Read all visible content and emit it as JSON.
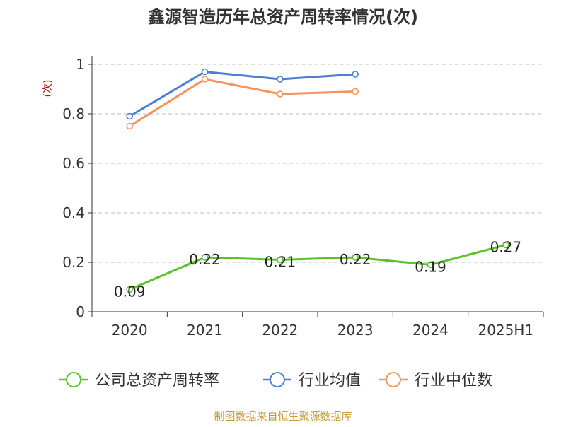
{
  "chart_data": {
    "type": "line",
    "title": "鑫源智造历年总资产周转率情况(次)",
    "ylabel": "(次)",
    "xlabel": "",
    "categories": [
      "2020",
      "2021",
      "2022",
      "2023",
      "2024",
      "2025H1"
    ],
    "ylim": [
      0,
      1
    ],
    "yticks": [
      {
        "value": 0,
        "label": "0"
      },
      {
        "value": 0.2,
        "label": "0.2"
      },
      {
        "value": 0.4,
        "label": "0.4"
      },
      {
        "value": 0.6,
        "label": "0.6"
      },
      {
        "value": 0.8,
        "label": "0.8"
      },
      {
        "value": 1,
        "label": "1"
      }
    ],
    "grid": true,
    "legend_position": "bottom",
    "series": [
      {
        "name": "公司总资产周转率",
        "color": "#5bc229",
        "values": [
          0.09,
          0.22,
          0.21,
          0.22,
          0.19,
          0.27
        ],
        "data_labels": [
          "0.09",
          "0.22",
          "0.21",
          "0.22",
          "0.19",
          "0.27"
        ]
      },
      {
        "name": "行业均值",
        "color": "#4a7fd4",
        "values": [
          0.79,
          0.97,
          0.94,
          0.96,
          null,
          null
        ]
      },
      {
        "name": "行业中位数",
        "color": "#f5925e",
        "values": [
          0.75,
          0.94,
          0.88,
          0.89,
          null,
          null
        ]
      }
    ],
    "source": "制图数据来自恒生聚源数据库"
  }
}
